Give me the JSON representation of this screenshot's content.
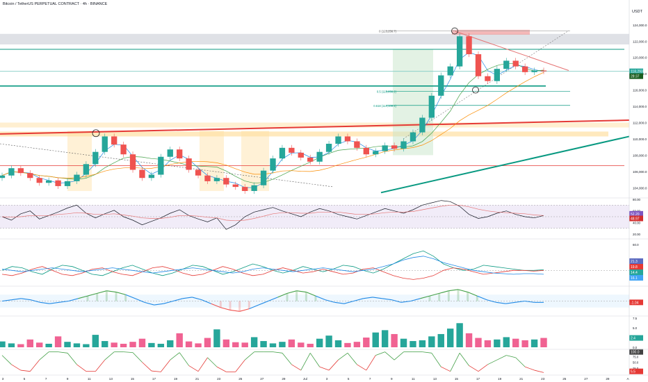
{
  "header": {
    "title": "Bitcoin / TetherUS PERPETUAL CONTRACT · 4h · BINANCE"
  },
  "currency": "USDT",
  "colors": {
    "up": "#26a69a",
    "down": "#ef5350",
    "red_line": "#e53935",
    "green_line": "#089981",
    "orange_zone": "#ffe0a3",
    "grey_zone": "#d1d4dc",
    "purple_band": "#ede7f6"
  },
  "main_panel": {
    "price_ticks": [
      "124,000.0",
      "122,000.0",
      "120,000.0",
      "118,000.0",
      "116,000.0",
      "114,000.0",
      "112,000.0",
      "110,000.0",
      "108,000.0",
      "106,000.0",
      "104,000.0"
    ],
    "price_tick_values": [
      124000,
      122000,
      120000,
      118000,
      116000,
      114000,
      112000,
      110000,
      108000,
      106000,
      104000
    ],
    "last_price": "118,293.0",
    "countdown": "28:37",
    "fib_labels": [
      "0 (123,256.7)",
      "0.5 (115,856.2)",
      "0.618 (114,109.4)"
    ],
    "fib_values": [
      123256.7,
      115856.2,
      114109.4
    ]
  },
  "x_axis": {
    "labels": [
      "3",
      "5",
      "7",
      "9",
      "11",
      "13",
      "15",
      "17",
      "19",
      "21",
      "23",
      "25",
      "27",
      "29",
      "Jul",
      "3",
      "5",
      "7",
      "9",
      "11",
      "13",
      "15",
      "17",
      "19",
      "21",
      "23",
      "25",
      "27",
      "29",
      "A"
    ]
  },
  "rsi_panel": {
    "ticks": [
      "80.00",
      "60.00",
      "40.00",
      "20.00"
    ],
    "tick_values": [
      80,
      60,
      40,
      20
    ],
    "badges": [
      "52.20",
      "48.97"
    ]
  },
  "dmi_panel": {
    "ticks": [
      "60.0"
    ],
    "badges": [
      "21.3",
      "19.8",
      "14.4",
      "16.1"
    ]
  },
  "osc_panel": {
    "badge": "-1.04"
  },
  "vol_panel": {
    "ticks": [
      "7.5",
      "5.0",
      "2.5",
      "0.0"
    ],
    "tick_values": [
      7.5,
      5,
      2.5,
      0
    ],
    "badge": "2.4"
  },
  "stoch_panel": {
    "ticks": [
      "100.0",
      "75.0",
      "50.0",
      "25.0"
    ],
    "badges": [
      "100.0",
      "5.5"
    ]
  },
  "chart_data": [
    {
      "type": "line",
      "title": "Bitcoin / TetherUS PERPETUAL CONTRACT · 4h · BINANCE",
      "ylim": [
        103000,
        124500
      ],
      "levels_horizontal": [
        121000,
        118300,
        116500,
        115856.2,
        114109.4,
        106700
      ],
      "series": [
        {
          "kind": "close",
          "values": [
            105500,
            106400,
            105800,
            105200,
            104600,
            104900,
            104200,
            104800,
            105600,
            106900,
            108400,
            110300,
            109300,
            108100,
            106200,
            105200,
            105600,
            107800,
            108700,
            107600,
            106200,
            105500,
            104800,
            105200,
            104400,
            104100,
            103600,
            104300,
            106100,
            107600,
            108900,
            108300,
            107700,
            107200,
            108400,
            109400,
            110300,
            109700,
            108900,
            108100,
            108500,
            109200,
            108800,
            109700,
            110800,
            112600,
            115300,
            117800,
            118900,
            122600,
            120400,
            117700,
            117100,
            118600,
            119600,
            118900,
            118200,
            118400,
            118300
          ]
        }
      ]
    },
    {
      "type": "line",
      "title": "RSI",
      "ylim": [
        20,
        80
      ],
      "series": [
        {
          "values": [
            50,
            44,
            55,
            60,
            46,
            52,
            58,
            65,
            70,
            56,
            48,
            55,
            61,
            50,
            44,
            36,
            42,
            48,
            56,
            62,
            52,
            46,
            41,
            48,
            28,
            36,
            50,
            58,
            62,
            66,
            60,
            55,
            50,
            58,
            64,
            60,
            54,
            50,
            46,
            52,
            58,
            64,
            60,
            56,
            62,
            70,
            74,
            78,
            76,
            68,
            54,
            47,
            50,
            56,
            60,
            54,
            50,
            48,
            52
          ]
        },
        {
          "values": [
            50,
            49,
            50,
            52,
            52,
            52,
            54,
            55,
            57,
            56,
            54,
            54,
            55,
            53,
            51,
            48,
            47,
            47,
            49,
            52,
            52,
            51,
            49,
            48,
            44,
            43,
            44,
            47,
            51,
            55,
            57,
            57,
            56,
            56,
            58,
            58,
            58,
            56,
            54,
            54,
            55,
            57,
            58,
            58,
            59,
            62,
            65,
            68,
            70,
            70,
            67,
            63,
            60,
            58,
            57,
            56,
            55,
            53,
            52
          ]
        }
      ]
    },
    {
      "type": "line",
      "title": "DMI",
      "ylim": [
        0,
        60
      ],
      "series": [
        {
          "values": [
            20,
            26,
            24,
            18,
            14,
            22,
            28,
            26,
            20,
            14,
            12,
            18,
            24,
            28,
            22,
            16,
            12,
            16,
            22,
            28,
            26,
            20,
            14,
            18,
            24,
            30,
            26,
            20,
            16,
            20,
            26,
            22,
            18,
            22,
            28,
            26,
            20,
            16,
            22,
            30,
            38,
            46,
            50,
            42,
            30,
            24,
            20,
            22,
            28,
            26,
            24,
            22,
            20,
            20,
            21
          ]
        },
        {
          "values": [
            14,
            12,
            16,
            22,
            26,
            20,
            14,
            12,
            16,
            22,
            24,
            18,
            14,
            12,
            18,
            24,
            26,
            22,
            16,
            12,
            14,
            20,
            26,
            22,
            16,
            12,
            14,
            20,
            24,
            20,
            16,
            18,
            22,
            18,
            14,
            16,
            22,
            24,
            18,
            12,
            8,
            6,
            8,
            12,
            20,
            24,
            22,
            18,
            14,
            16,
            18,
            20,
            20,
            19,
            20
          ]
        },
        {
          "values": [
            22,
            20,
            18,
            20,
            22,
            24,
            22,
            20,
            18,
            20,
            22,
            24,
            22,
            20,
            18,
            16,
            18,
            20,
            22,
            24,
            22,
            20,
            18,
            16,
            18,
            22,
            24,
            22,
            20,
            18,
            20,
            22,
            24,
            22,
            20,
            18,
            20,
            22,
            26,
            30,
            36,
            40,
            42,
            38,
            32,
            28,
            24,
            20,
            18,
            16,
            15,
            14,
            15,
            15,
            14
          ]
        }
      ]
    },
    {
      "type": "area",
      "title": "Oscillator",
      "ylim": [
        -10,
        10
      ],
      "series": [
        {
          "values": [
            0,
            1,
            2,
            1,
            -1,
            -2,
            -1,
            0,
            2,
            4,
            6,
            8,
            7,
            5,
            2,
            -1,
            -3,
            -2,
            0,
            2,
            3,
            1,
            -2,
            -5,
            -7,
            -8,
            -6,
            -3,
            0,
            3,
            6,
            8,
            7,
            4,
            1,
            -1,
            -2,
            0,
            2,
            3,
            2,
            1,
            -1,
            0,
            2,
            4,
            6,
            8,
            9,
            7,
            4,
            1,
            -1,
            -2,
            -1,
            0,
            -1,
            -1
          ]
        }
      ]
    },
    {
      "type": "bar",
      "title": "Volume",
      "ylim": [
        0,
        7.5
      ],
      "series": [
        {
          "values": [
            1.5,
            1.0,
            0.8,
            2.0,
            1.2,
            0.9,
            2.8,
            1.4,
            1.0,
            0.8,
            3.2,
            1.6,
            1.2,
            0.9,
            1.4,
            2.2,
            1.1,
            0.9,
            1.8,
            3.6,
            1.5,
            1.0,
            2.4,
            4.6,
            2.0,
            1.3,
            1.2,
            2.6,
            1.6,
            1.0,
            1.4,
            2.0,
            1.2,
            0.9,
            2.2,
            3.0,
            1.8,
            1.1,
            1.4,
            2.5,
            3.8,
            4.4,
            3.4,
            2.2,
            1.6,
            1.8,
            2.8,
            3.4,
            4.8,
            6.2,
            3.6,
            2.4,
            1.8,
            2.0,
            2.6,
            2.2,
            1.8,
            2.0,
            2.4
          ]
        }
      ]
    },
    {
      "type": "line",
      "title": "Stochastic",
      "ylim": [
        0,
        100
      ],
      "series": [
        {
          "values": [
            80,
            40,
            15,
            10,
            60,
            95,
            95,
            90,
            40,
            10,
            10,
            60,
            95,
            95,
            92,
            50,
            12,
            8,
            60,
            92,
            35,
            10,
            70,
            30,
            8,
            8,
            60,
            95,
            95,
            95,
            90,
            40,
            15,
            90,
            30,
            15,
            60,
            90,
            40,
            15,
            80,
            95,
            60,
            95,
            95,
            95,
            90,
            30,
            10,
            90,
            35,
            10,
            40,
            60,
            80,
            70,
            30,
            15,
            5
          ]
        }
      ]
    }
  ]
}
